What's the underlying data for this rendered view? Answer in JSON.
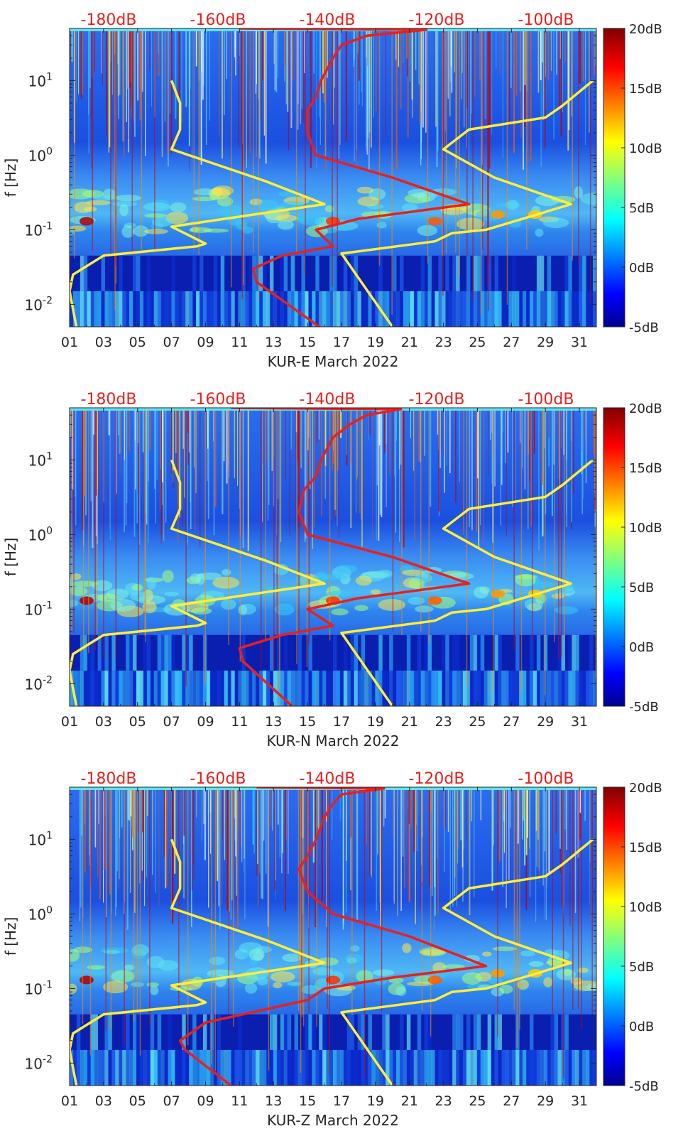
{
  "chart_data": [
    {
      "type": "heatmap",
      "title": "",
      "xlabel": "KUR-E March 2022",
      "ylabel": "f [Hz]",
      "x_tick_labels": [
        "01",
        "03",
        "05",
        "07",
        "09",
        "11",
        "13",
        "15",
        "17",
        "19",
        "21",
        "23",
        "25",
        "27",
        "29",
        "31"
      ],
      "y_tick_labels": [
        "10^-2",
        "10^-1",
        "10^0",
        "10^1"
      ],
      "ylim_hz": [
        0.005,
        50
      ],
      "xlim_days": [
        1,
        32
      ],
      "top_axis_labels": [
        "-180dB",
        "-160dB",
        "-140dB",
        "-120dB",
        "-100dB"
      ],
      "colorbar_labels": [
        "20dB",
        "15dB",
        "10dB",
        "5dB",
        "0dB",
        "-5dB"
      ],
      "colorbar_range_db": [
        -5,
        20
      ],
      "series": [
        {
          "name": "yellow-curve-left",
          "color": "#ffee3a",
          "points": [
            [
              1.4,
              0.005
            ],
            [
              1.0,
              0.015
            ],
            [
              1.2,
              0.025
            ],
            [
              3.0,
              0.045
            ],
            [
              8.5,
              0.06
            ],
            [
              9.0,
              0.065
            ],
            [
              7.0,
              0.11
            ],
            [
              16.0,
              0.22
            ],
            [
              12.5,
              0.45
            ],
            [
              7.0,
              1.2
            ],
            [
              7.5,
              2.2
            ],
            [
              7.5,
              5.0
            ],
            [
              7.0,
              10.0
            ]
          ]
        },
        {
          "name": "yellow-curve-right",
          "color": "#ffee3a",
          "points": [
            [
              20.0,
              0.005
            ],
            [
              17.0,
              0.048
            ],
            [
              22.5,
              0.07
            ],
            [
              23.5,
              0.09
            ],
            [
              25.5,
              0.1
            ],
            [
              28.5,
              0.16
            ],
            [
              30.5,
              0.22
            ],
            [
              26.0,
              0.5
            ],
            [
              23.0,
              1.2
            ],
            [
              24.5,
              2.2
            ],
            [
              29.0,
              3.2
            ],
            [
              30.0,
              4.6
            ],
            [
              31.8,
              10.0
            ]
          ]
        },
        {
          "name": "red-noise-model-curve",
          "color": "#e8201e",
          "points": [
            [
              15.7,
              0.005
            ],
            [
              12.0,
              0.02
            ],
            [
              11.8,
              0.03
            ],
            [
              13.5,
              0.045
            ],
            [
              16.5,
              0.06
            ],
            [
              15.5,
              0.1
            ],
            [
              18.0,
              0.14
            ],
            [
              24.5,
              0.22
            ],
            [
              20.0,
              0.5
            ],
            [
              15.5,
              1.0
            ],
            [
              15.0,
              2.0
            ],
            [
              15.0,
              4.0
            ],
            [
              15.5,
              6.0
            ],
            [
              15.8,
              10.0
            ],
            [
              16.5,
              20.0
            ],
            [
              17.0,
              30.0
            ],
            [
              18.5,
              40.0
            ],
            [
              22.0,
              48.0
            ],
            [
              11.0,
              50.0
            ]
          ]
        }
      ]
    },
    {
      "type": "heatmap",
      "title": "",
      "xlabel": "KUR-N March 2022",
      "ylabel": "f [Hz]",
      "x_tick_labels": [
        "01",
        "03",
        "05",
        "07",
        "09",
        "11",
        "13",
        "15",
        "17",
        "19",
        "21",
        "23",
        "25",
        "27",
        "29",
        "31"
      ],
      "y_tick_labels": [
        "10^-2",
        "10^-1",
        "10^0",
        "10^1"
      ],
      "ylim_hz": [
        0.005,
        50
      ],
      "xlim_days": [
        1,
        32
      ],
      "top_axis_labels": [
        "-180dB",
        "-160dB",
        "-140dB",
        "-120dB",
        "-100dB"
      ],
      "colorbar_labels": [
        "20dB",
        "15dB",
        "10dB",
        "5dB",
        "0dB",
        "-5dB"
      ],
      "colorbar_range_db": [
        -5,
        20
      ],
      "series": [
        {
          "name": "yellow-curve-left",
          "color": "#ffee3a",
          "points": [
            [
              1.4,
              0.005
            ],
            [
              1.0,
              0.015
            ],
            [
              1.2,
              0.025
            ],
            [
              3.0,
              0.045
            ],
            [
              8.5,
              0.06
            ],
            [
              9.0,
              0.065
            ],
            [
              7.0,
              0.11
            ],
            [
              16.0,
              0.22
            ],
            [
              12.5,
              0.45
            ],
            [
              7.0,
              1.2
            ],
            [
              7.5,
              2.2
            ],
            [
              7.5,
              5.0
            ],
            [
              7.0,
              10.0
            ]
          ]
        },
        {
          "name": "yellow-curve-right",
          "color": "#ffee3a",
          "points": [
            [
              20.0,
              0.005
            ],
            [
              17.0,
              0.048
            ],
            [
              22.5,
              0.07
            ],
            [
              23.5,
              0.09
            ],
            [
              25.5,
              0.1
            ],
            [
              28.5,
              0.16
            ],
            [
              30.5,
              0.22
            ],
            [
              26.0,
              0.5
            ],
            [
              23.0,
              1.2
            ],
            [
              24.5,
              2.2
            ],
            [
              29.0,
              3.2
            ],
            [
              30.0,
              4.6
            ],
            [
              31.8,
              10.0
            ]
          ]
        },
        {
          "name": "red-noise-model-curve",
          "color": "#e8201e",
          "points": [
            [
              14.1,
              0.005
            ],
            [
              11.2,
              0.02
            ],
            [
              11.0,
              0.03
            ],
            [
              13.5,
              0.045
            ],
            [
              16.5,
              0.06
            ],
            [
              15.0,
              0.1
            ],
            [
              18.0,
              0.14
            ],
            [
              24.5,
              0.22
            ],
            [
              20.0,
              0.5
            ],
            [
              15.0,
              1.0
            ],
            [
              14.5,
              2.0
            ],
            [
              14.8,
              4.0
            ],
            [
              15.5,
              6.0
            ],
            [
              15.8,
              10.0
            ],
            [
              16.5,
              20.0
            ],
            [
              17.5,
              30.0
            ],
            [
              18.5,
              40.0
            ],
            [
              20.5,
              48.0
            ],
            [
              10.5,
              50.0
            ]
          ]
        }
      ]
    },
    {
      "type": "heatmap",
      "title": "",
      "xlabel": "KUR-Z March 2022",
      "ylabel": "f [Hz]",
      "x_tick_labels": [
        "01",
        "03",
        "05",
        "07",
        "09",
        "11",
        "13",
        "15",
        "17",
        "19",
        "21",
        "23",
        "25",
        "27",
        "29",
        "31"
      ],
      "y_tick_labels": [
        "10^-2",
        "10^-1",
        "10^0",
        "10^1"
      ],
      "ylim_hz": [
        0.005,
        50
      ],
      "xlim_days": [
        1,
        32
      ],
      "top_axis_labels": [
        "-180dB",
        "-160dB",
        "-140dB",
        "-120dB",
        "-100dB"
      ],
      "colorbar_labels": [
        "20dB",
        "15dB",
        "10dB",
        "5dB",
        "0dB",
        "-5dB"
      ],
      "colorbar_range_db": [
        -5,
        20
      ],
      "series": [
        {
          "name": "yellow-curve-left",
          "color": "#ffee3a",
          "points": [
            [
              1.4,
              0.005
            ],
            [
              1.0,
              0.015
            ],
            [
              1.2,
              0.025
            ],
            [
              3.0,
              0.045
            ],
            [
              8.5,
              0.06
            ],
            [
              9.0,
              0.065
            ],
            [
              7.0,
              0.11
            ],
            [
              16.0,
              0.22
            ],
            [
              12.5,
              0.45
            ],
            [
              7.0,
              1.2
            ],
            [
              7.5,
              2.2
            ],
            [
              7.5,
              5.0
            ],
            [
              7.0,
              10.0
            ]
          ]
        },
        {
          "name": "yellow-curve-right",
          "color": "#ffee3a",
          "points": [
            [
              20.0,
              0.005
            ],
            [
              17.0,
              0.048
            ],
            [
              22.5,
              0.07
            ],
            [
              23.5,
              0.09
            ],
            [
              25.5,
              0.1
            ],
            [
              28.5,
              0.16
            ],
            [
              30.5,
              0.22
            ],
            [
              26.0,
              0.5
            ],
            [
              23.0,
              1.2
            ],
            [
              24.5,
              2.2
            ],
            [
              29.0,
              3.2
            ],
            [
              30.0,
              4.6
            ],
            [
              31.8,
              10.0
            ]
          ]
        },
        {
          "name": "red-noise-model-curve",
          "color": "#e8201e",
          "points": [
            [
              10.5,
              0.005
            ],
            [
              7.8,
              0.015
            ],
            [
              7.5,
              0.02
            ],
            [
              9.0,
              0.035
            ],
            [
              15.0,
              0.07
            ],
            [
              16.0,
              0.1
            ],
            [
              20.0,
              0.14
            ],
            [
              25.5,
              0.2
            ],
            [
              21.0,
              0.5
            ],
            [
              16.5,
              1.0
            ],
            [
              15.0,
              2.0
            ],
            [
              14.5,
              4.0
            ],
            [
              15.0,
              6.0
            ],
            [
              15.5,
              10.0
            ],
            [
              16.0,
              20.0
            ],
            [
              16.5,
              30.0
            ],
            [
              17.0,
              40.0
            ],
            [
              19.5,
              48.0
            ],
            [
              12.0,
              50.0
            ]
          ]
        }
      ]
    }
  ]
}
